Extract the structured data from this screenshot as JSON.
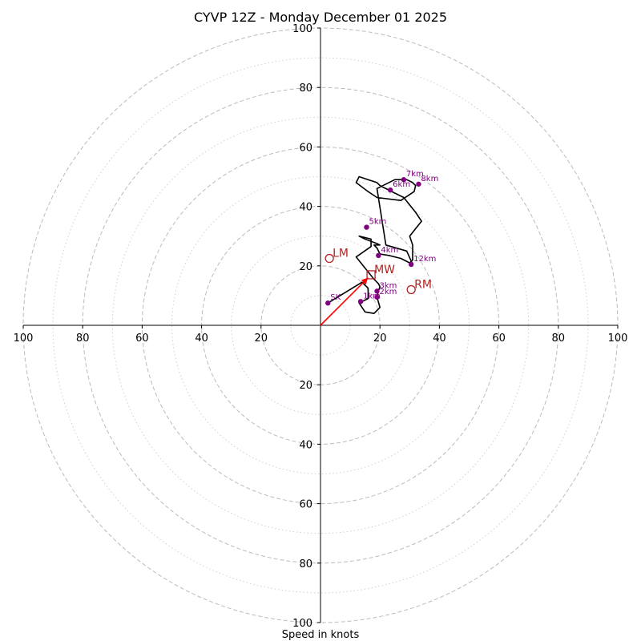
{
  "chart_data": {
    "type": "scatter",
    "subtype": "hodograph",
    "title": "CYVP 12Z - Monday December 01 2025",
    "xlabel": "Speed in knots",
    "ylabel": "",
    "xlim": [
      -100,
      100
    ],
    "ylim": [
      -100,
      100
    ],
    "rings_major": [
      20,
      40,
      60,
      80,
      100
    ],
    "rings_minor": [
      10,
      30,
      50,
      70,
      90
    ],
    "tick_values": [
      20,
      40,
      60,
      80,
      100
    ],
    "grid": true,
    "colors": {
      "trace": "#000000",
      "height_points": "#800080",
      "storm_motion": "#b22222",
      "mean_wind_vector": "#ff0000",
      "ring_major": "#bbbbbb",
      "ring_minor": "#d0d0d0"
    },
    "hodograph_trace": {
      "u": [
        2.5,
        14,
        16,
        16,
        13,
        15,
        18,
        20,
        19,
        19.5,
        20,
        19.5,
        18,
        12,
        17,
        17,
        13,
        15,
        19,
        20,
        18,
        19,
        20,
        23,
        27,
        30,
        30,
        31,
        31,
        30,
        32,
        34,
        32,
        28,
        24,
        20,
        19,
        16,
        13,
        12,
        16,
        19,
        27,
        31.5,
        32,
        31,
        29,
        25,
        19,
        22,
        29,
        31
      ],
      "v": [
        7.5,
        14.5,
        12.5,
        9,
        7.5,
        4.5,
        4,
        6,
        9.5,
        11.5,
        13,
        14,
        15.5,
        23,
        26.5,
        29,
        30,
        29,
        27.5,
        27,
        27,
        26,
        24,
        23.5,
        22.5,
        21,
        21,
        22,
        27,
        30,
        32.5,
        35,
        38,
        43,
        45,
        47,
        48,
        49,
        50,
        48,
        45,
        43,
        42,
        45,
        47,
        48,
        49,
        49,
        46,
        27,
        25,
        20.5
      ]
    },
    "height_points": [
      {
        "label": "SK",
        "u": 2.5,
        "v": 7.5
      },
      {
        "label": "1km",
        "u": 13.5,
        "v": 8
      },
      {
        "label": "2km",
        "u": 19,
        "v": 9.5
      },
      {
        "label": "3km",
        "u": 19,
        "v": 11.5
      },
      {
        "label": "4km",
        "u": 19.5,
        "v": 23.5
      },
      {
        "label": "5km",
        "u": 15.5,
        "v": 33
      },
      {
        "label": "6km",
        "u": 23.5,
        "v": 45.5
      },
      {
        "label": "7km",
        "u": 28,
        "v": 49
      },
      {
        "label": "8km",
        "u": 33,
        "v": 47.5
      },
      {
        "label": "12km",
        "u": 30.5,
        "v": 20.5
      }
    ],
    "storm_motion": [
      {
        "label": "LM",
        "u": 3,
        "v": 22.5,
        "marker": "circle"
      },
      {
        "label": "MW",
        "u": 17,
        "v": 17,
        "marker": "square"
      },
      {
        "label": "RM",
        "u": 30.5,
        "v": 12,
        "marker": "circle"
      }
    ],
    "mean_wind_vector": {
      "u": 16,
      "v": 16
    }
  }
}
